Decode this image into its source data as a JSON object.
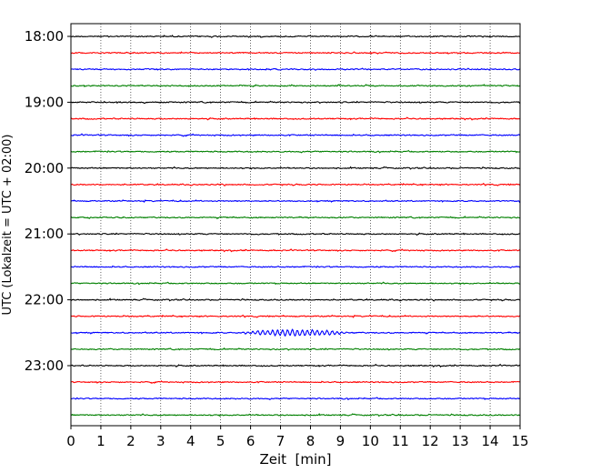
{
  "chart_data": {
    "type": "line",
    "subtype": "helicorder",
    "xlabel": "Zeit  [min]",
    "ylabel": "UTC (Lokalzeit = UTC + 02:00)",
    "xlim": [
      0,
      15
    ],
    "x_ticks": [
      "0",
      "1",
      "2",
      "3",
      "4",
      "5",
      "6",
      "7",
      "8",
      "9",
      "10",
      "11",
      "12",
      "13",
      "14",
      "15"
    ],
    "y_ticks": [
      "18:00",
      "19:00",
      "20:00",
      "21:00",
      "22:00",
      "23:00"
    ],
    "grid": "vertical dotted at each minute",
    "line_colors": [
      "#000000",
      "#ff0000",
      "#0000ff",
      "#008000"
    ],
    "traces": [
      {
        "start": "18:00",
        "color": "#000000"
      },
      {
        "start": "18:15",
        "color": "#ff0000"
      },
      {
        "start": "18:30",
        "color": "#0000ff"
      },
      {
        "start": "18:45",
        "color": "#008000"
      },
      {
        "start": "19:00",
        "color": "#000000"
      },
      {
        "start": "19:15",
        "color": "#ff0000"
      },
      {
        "start": "19:30",
        "color": "#0000ff"
      },
      {
        "start": "19:45",
        "color": "#008000"
      },
      {
        "start": "20:00",
        "color": "#000000"
      },
      {
        "start": "20:15",
        "color": "#ff0000"
      },
      {
        "start": "20:30",
        "color": "#0000ff"
      },
      {
        "start": "20:45",
        "color": "#008000"
      },
      {
        "start": "21:00",
        "color": "#000000"
      },
      {
        "start": "21:15",
        "color": "#ff0000"
      },
      {
        "start": "21:30",
        "color": "#0000ff"
      },
      {
        "start": "21:45",
        "color": "#008000"
      },
      {
        "start": "22:00",
        "color": "#000000"
      },
      {
        "start": "22:15",
        "color": "#ff0000"
      },
      {
        "start": "22:30",
        "color": "#0000ff",
        "event_minutes": [
          5.5,
          9.5
        ]
      },
      {
        "start": "22:45",
        "color": "#008000"
      },
      {
        "start": "23:00",
        "color": "#000000"
      },
      {
        "start": "23:15",
        "color": "#ff0000"
      },
      {
        "start": "23:30",
        "color": "#0000ff"
      },
      {
        "start": "23:45",
        "color": "#008000"
      }
    ]
  }
}
